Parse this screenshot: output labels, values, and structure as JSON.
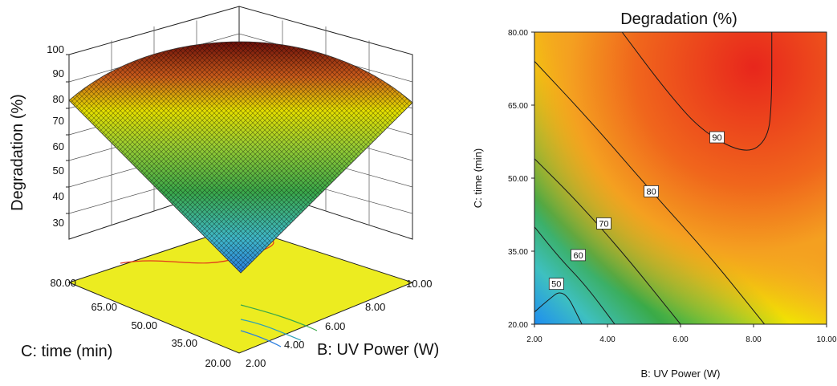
{
  "chart_data": [
    {
      "type": "surface3d",
      "zlabel": "Degradation (%)",
      "xlabel": "B: UV Power (W)",
      "ylabel": "C: time (min)",
      "x_ticks": [
        "2.00",
        "4.00",
        "6.00",
        "8.00",
        "10.00"
      ],
      "y_ticks": [
        "20.00",
        "35.00",
        "50.00",
        "65.00",
        "80.00"
      ],
      "z_ticks": [
        "30",
        "40",
        "50",
        "60",
        "70",
        "80",
        "90",
        "100"
      ],
      "xlim": [
        2,
        10
      ],
      "ylim": [
        20,
        80
      ],
      "zlim": [
        30,
        100
      ],
      "corner_values": [
        {
          "x": 2,
          "y": 20,
          "z": 22
        },
        {
          "x": 10,
          "y": 20,
          "z": 80
        },
        {
          "x": 2,
          "y": 80,
          "z": 80
        },
        {
          "x": 10,
          "y": 80,
          "z": 82
        }
      ],
      "peak": {
        "x": 8,
        "y": 62,
        "z": 98
      },
      "colormap": [
        "#2b7fe0",
        "#3fb8c8",
        "#3aa84a",
        "#9acd32",
        "#f2e600",
        "#f28a1e",
        "#e8261c"
      ]
    },
    {
      "type": "contour",
      "title": "Degradation (%)",
      "xlabel": "B: UV Power (W)",
      "ylabel": "C: time (min)",
      "x_ticks": [
        "2.00",
        "4.00",
        "6.00",
        "8.00",
        "10.00"
      ],
      "y_ticks": [
        "20.00",
        "35.00",
        "50.00",
        "65.00",
        "80.00"
      ],
      "xlim": [
        2,
        10
      ],
      "ylim": [
        20,
        80
      ],
      "levels": [
        {
          "value": 50,
          "label": "50",
          "label_at": [
            2.6,
            28.3
          ]
        },
        {
          "value": 60,
          "label": "60",
          "label_at": [
            3.2,
            34.2
          ]
        },
        {
          "value": 70,
          "label": "70",
          "label_at": [
            3.9,
            40.7
          ]
        },
        {
          "value": 80,
          "label": "80",
          "label_at": [
            5.2,
            47.3
          ]
        },
        {
          "value": 90,
          "label": "90",
          "label_at": [
            7.0,
            58.4
          ]
        }
      ],
      "colormap": [
        "#2b7fe0",
        "#3fb8c8",
        "#3aa84a",
        "#9acd32",
        "#f2e600",
        "#f28a1e",
        "#e8261c"
      ]
    }
  ]
}
